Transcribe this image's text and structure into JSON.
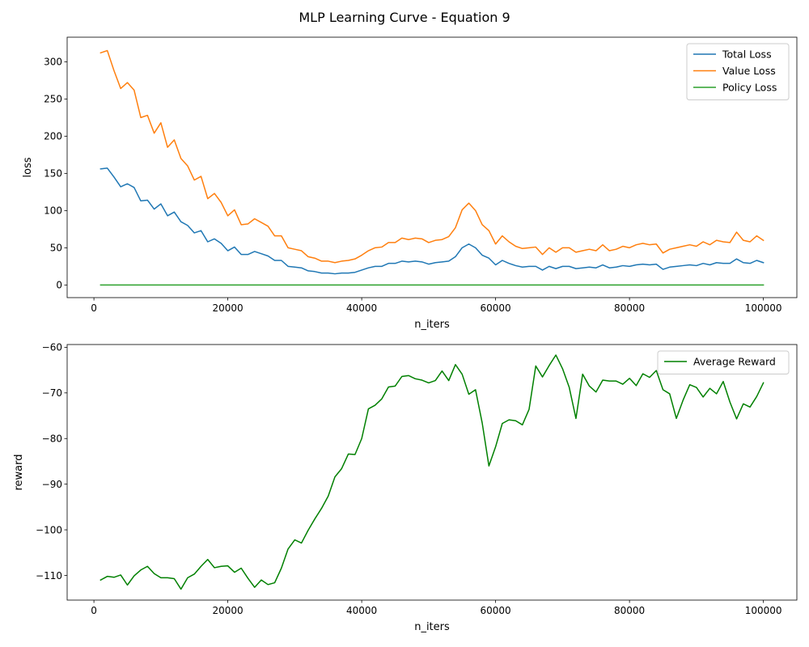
{
  "figure_title": "MLP Learning Curve - Equation 9",
  "colors": {
    "total": "#1f77b4",
    "value": "#ff7f0e",
    "policy": "#2ca02c",
    "reward": "#008000"
  },
  "chart_data": [
    {
      "type": "line",
      "xlabel": "n_iters",
      "ylabel": "loss",
      "xlim": [
        -4000,
        105000
      ],
      "ylim": [
        -17,
        333
      ],
      "xticks": [
        0,
        20000,
        40000,
        60000,
        80000,
        100000
      ],
      "xtick_labels": [
        "0",
        "20000",
        "40000",
        "60000",
        "80000",
        "100000"
      ],
      "yticks": [
        0,
        50,
        100,
        150,
        200,
        250,
        300
      ],
      "ytick_labels": [
        "0",
        "50",
        "100",
        "150",
        "200",
        "250",
        "300"
      ],
      "grid": false,
      "legend": "top-right",
      "x": [
        1000,
        2000,
        3000,
        4000,
        5000,
        6000,
        7000,
        8000,
        9000,
        10000,
        11000,
        12000,
        13000,
        14000,
        15000,
        16000,
        17000,
        18000,
        19000,
        20000,
        21000,
        22000,
        23000,
        24000,
        25000,
        26000,
        27000,
        28000,
        29000,
        30000,
        31000,
        32000,
        33000,
        34000,
        35000,
        36000,
        37000,
        38000,
        39000,
        40000,
        41000,
        42000,
        43000,
        44000,
        45000,
        46000,
        47000,
        48000,
        49000,
        50000,
        51000,
        52000,
        53000,
        54000,
        55000,
        56000,
        57000,
        58000,
        59000,
        60000,
        61000,
        62000,
        63000,
        64000,
        65000,
        66000,
        67000,
        68000,
        69000,
        70000,
        71000,
        72000,
        73000,
        74000,
        75000,
        76000,
        77000,
        78000,
        79000,
        80000,
        81000,
        82000,
        83000,
        84000,
        85000,
        86000,
        87000,
        88000,
        89000,
        90000,
        91000,
        92000,
        93000,
        94000,
        95000,
        96000,
        97000,
        98000,
        99000,
        100000
      ],
      "series": [
        {
          "name": "Total Loss",
          "color_key": "total",
          "values": [
            156,
            157,
            145,
            132,
            136,
            131,
            113,
            114,
            102,
            109,
            93,
            98,
            85,
            80,
            70,
            73,
            58,
            62,
            56,
            46,
            51,
            41,
            41,
            45,
            42,
            39,
            33,
            33,
            25,
            24,
            23,
            19,
            18,
            16,
            16,
            15,
            16,
            16,
            17,
            20,
            23,
            25,
            25,
            29,
            29,
            32,
            31,
            32,
            31,
            28,
            30,
            31,
            32,
            38,
            50,
            55,
            50,
            40,
            36,
            27,
            33,
            29,
            26,
            24,
            25,
            25,
            20,
            25,
            22,
            25,
            25,
            22,
            23,
            24,
            23,
            27,
            23,
            24,
            26,
            25,
            27,
            28,
            27,
            28,
            21,
            24,
            25,
            26,
            27,
            26,
            29,
            27,
            30,
            29,
            29,
            35,
            30,
            29,
            33,
            30
          ]
        },
        {
          "name": "Value Loss",
          "color_key": "value",
          "values": [
            312,
            315,
            288,
            264,
            272,
            262,
            225,
            228,
            204,
            218,
            185,
            195,
            170,
            160,
            141,
            146,
            116,
            123,
            111,
            93,
            101,
            81,
            82,
            89,
            84,
            79,
            66,
            66,
            50,
            48,
            46,
            38,
            36,
            32,
            32,
            30,
            32,
            33,
            35,
            40,
            46,
            50,
            51,
            57,
            57,
            63,
            61,
            63,
            62,
            57,
            60,
            61,
            65,
            77,
            101,
            110,
            100,
            81,
            73,
            55,
            66,
            58,
            52,
            49,
            50,
            51,
            41,
            50,
            44,
            50,
            50,
            44,
            46,
            48,
            46,
            54,
            46,
            48,
            52,
            50,
            54,
            56,
            54,
            55,
            43,
            48,
            50,
            52,
            54,
            52,
            58,
            54,
            60,
            58,
            57,
            71,
            60,
            58,
            66,
            60
          ]
        },
        {
          "name": "Policy Loss",
          "color_key": "policy",
          "values": [
            0,
            0,
            0,
            0,
            0,
            0,
            0,
            0,
            0,
            0,
            0,
            0,
            0,
            0,
            0,
            0,
            0,
            0,
            0,
            0,
            0,
            0,
            0,
            0,
            0,
            0,
            0,
            0,
            0,
            0,
            0,
            0,
            0,
            0,
            0,
            0,
            0,
            0,
            0,
            0,
            0,
            0,
            0,
            0,
            0,
            0,
            0,
            0,
            0,
            0,
            0,
            0,
            0,
            0,
            0,
            0,
            0,
            0,
            0,
            0,
            0,
            0,
            0,
            0,
            0,
            0,
            0,
            0,
            0,
            0,
            0,
            0,
            0,
            0,
            0,
            0,
            0,
            0,
            0,
            0,
            0,
            0,
            0,
            0,
            0,
            0,
            0,
            0,
            0,
            0,
            0,
            0,
            0,
            0,
            0,
            0,
            0,
            0,
            0,
            0
          ]
        }
      ]
    },
    {
      "type": "line",
      "xlabel": "n_iters",
      "ylabel": "reward",
      "xlim": [
        -4000,
        105000
      ],
      "ylim": [
        -115.4,
        -59.4
      ],
      "xticks": [
        0,
        20000,
        40000,
        60000,
        80000,
        100000
      ],
      "xtick_labels": [
        "0",
        "20000",
        "40000",
        "60000",
        "80000",
        "100000"
      ],
      "yticks": [
        -110,
        -100,
        -90,
        -80,
        -70,
        -60
      ],
      "ytick_labels": [
        "−110",
        "−100",
        "−90",
        "−80",
        "−70",
        "−60"
      ],
      "grid": false,
      "legend": "top-right",
      "x": [
        1000,
        2000,
        3000,
        4000,
        5000,
        6000,
        7000,
        8000,
        9000,
        10000,
        11000,
        12000,
        13000,
        14000,
        15000,
        16000,
        17000,
        18000,
        19000,
        20000,
        21000,
        22000,
        23000,
        24000,
        25000,
        26000,
        27000,
        28000,
        29000,
        30000,
        31000,
        32000,
        33000,
        34000,
        35000,
        36000,
        37000,
        38000,
        39000,
        40000,
        41000,
        42000,
        43000,
        44000,
        45000,
        46000,
        47000,
        48000,
        49000,
        50000,
        51000,
        52000,
        53000,
        54000,
        55000,
        56000,
        57000,
        58000,
        59000,
        60000,
        61000,
        62000,
        63000,
        64000,
        65000,
        66000,
        67000,
        68000,
        69000,
        70000,
        71000,
        72000,
        73000,
        74000,
        75000,
        76000,
        77000,
        78000,
        79000,
        80000,
        81000,
        82000,
        83000,
        84000,
        85000,
        86000,
        87000,
        88000,
        89000,
        90000,
        91000,
        92000,
        93000,
        94000,
        95000,
        96000,
        97000,
        98000,
        99000,
        100000
      ],
      "series": [
        {
          "name": "Average Reward",
          "color_key": "reward",
          "values": [
            -111.0,
            -110.2,
            -110.4,
            -109.9,
            -112.1,
            -110.1,
            -108.8,
            -108.0,
            -109.6,
            -110.5,
            -110.5,
            -110.7,
            -113.0,
            -110.5,
            -109.7,
            -108.0,
            -106.5,
            -108.3,
            -108.0,
            -107.9,
            -109.3,
            -108.4,
            -110.6,
            -112.6,
            -111.0,
            -112.0,
            -111.6,
            -108.4,
            -104.2,
            -102.2,
            -102.9,
            -100.1,
            -97.6,
            -95.3,
            -92.6,
            -88.4,
            -86.6,
            -83.4,
            -83.5,
            -80.0,
            -73.5,
            -72.7,
            -71.3,
            -68.7,
            -68.5,
            -66.4,
            -66.2,
            -66.9,
            -67.2,
            -67.8,
            -67.3,
            -65.2,
            -67.3,
            -63.8,
            -65.9,
            -70.3,
            -69.3,
            -76.6,
            -86.0,
            -81.8,
            -76.7,
            -75.9,
            -76.1,
            -77.0,
            -73.6,
            -64.1,
            -66.5,
            -64.0,
            -61.7,
            -64.7,
            -68.8,
            -75.6,
            -65.9,
            -68.5,
            -69.8,
            -67.2,
            -67.4,
            -67.4,
            -68.1,
            -66.8,
            -68.4,
            -65.8,
            -66.6,
            -65.1,
            -69.3,
            -70.2,
            -75.6,
            -71.6,
            -68.2,
            -68.8,
            -70.9,
            -69.0,
            -70.2,
            -67.5,
            -72.0,
            -75.7,
            -72.4,
            -73.1,
            -70.8,
            -67.8
          ]
        }
      ]
    }
  ]
}
